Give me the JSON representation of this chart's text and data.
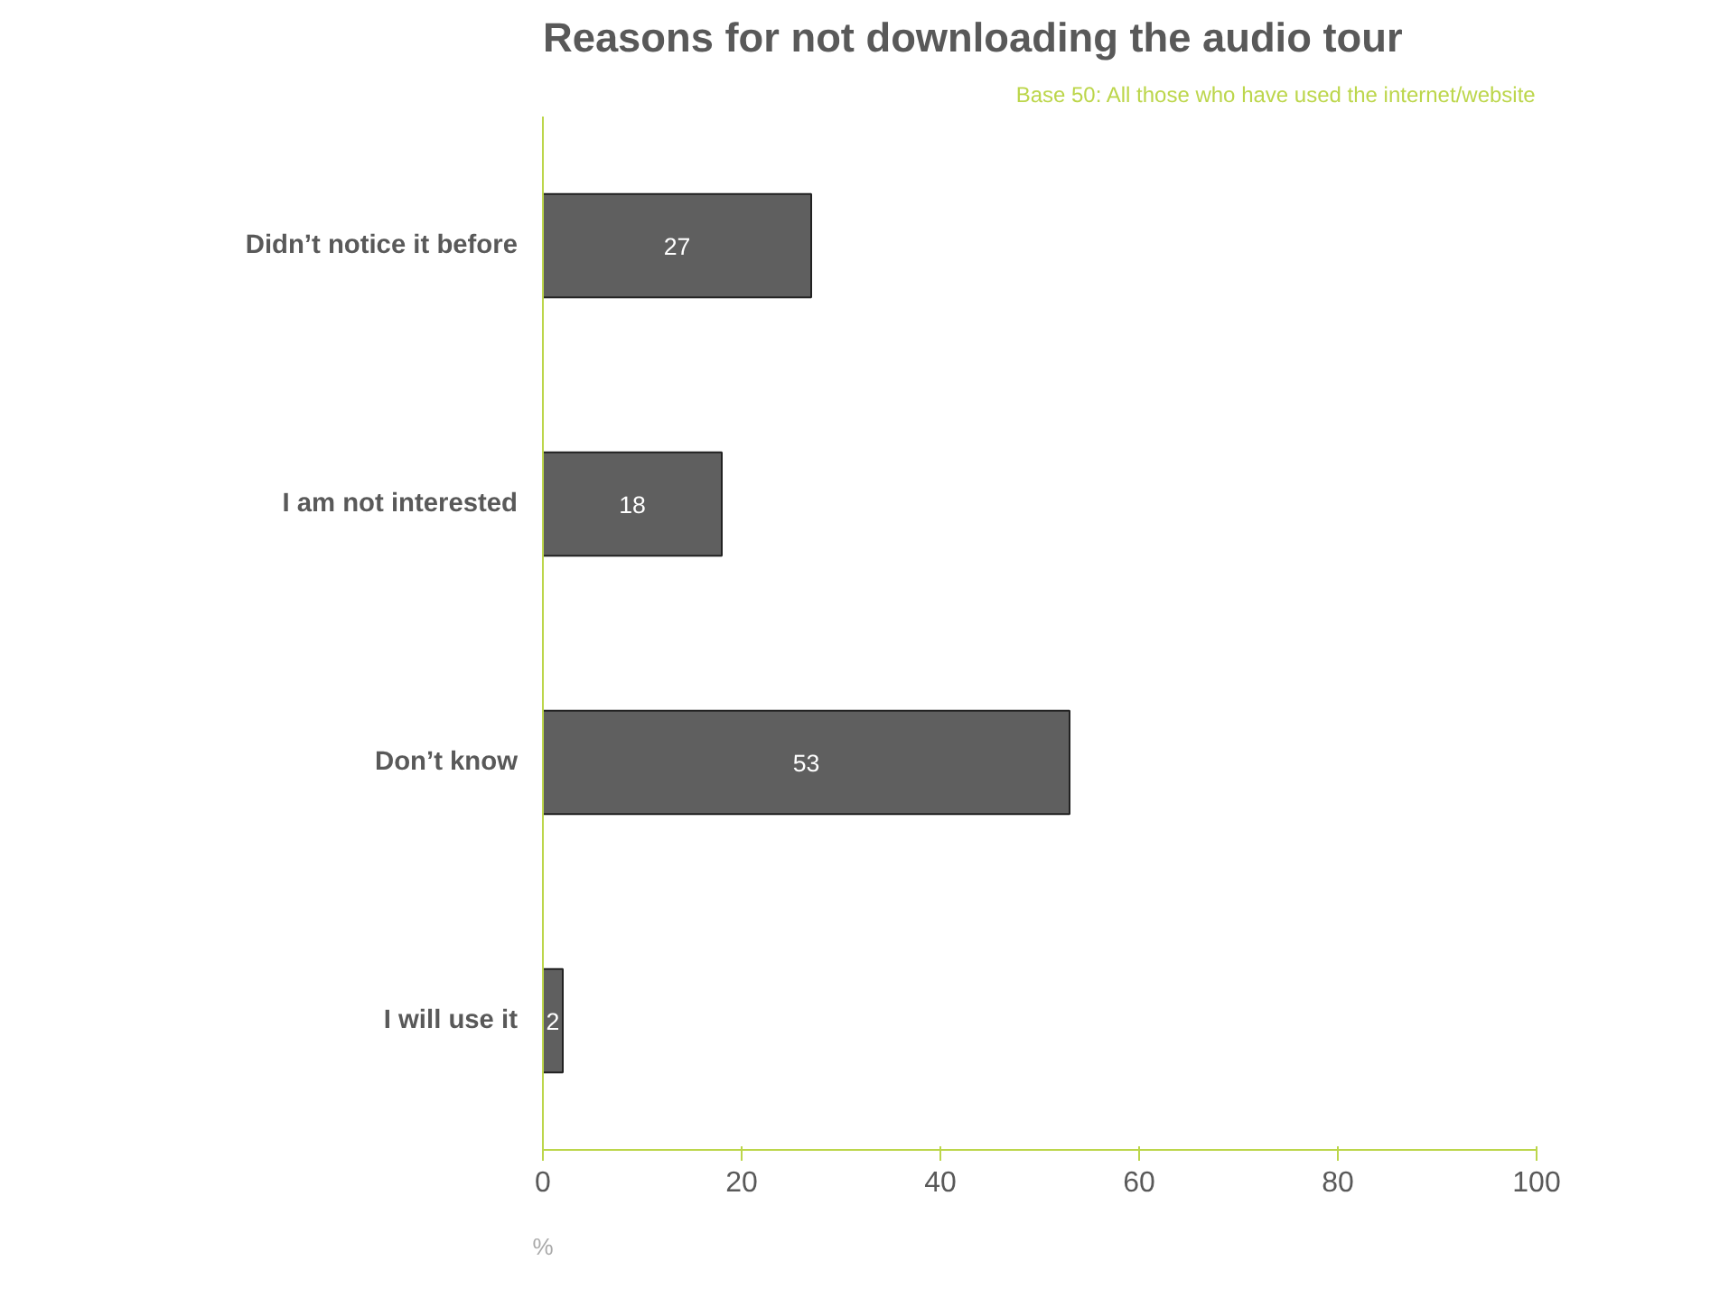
{
  "chart_data": {
    "type": "bar",
    "orientation": "horizontal",
    "title": "Reasons for not downloading the audio tour",
    "annotations": [
      "Base 50: All those who have used the internet/website"
    ],
    "categories": [
      "Didn’t notice it before",
      "I am not interested",
      "Don’t know",
      "I will use it"
    ],
    "values": [
      27,
      18,
      53,
      2
    ],
    "color": "#5f5f5f",
    "xlabel": "%",
    "xlim": [
      0,
      100
    ],
    "xticks": [
      0,
      20,
      40,
      60,
      80,
      100
    ],
    "data_labels": true,
    "grid": false
  }
}
